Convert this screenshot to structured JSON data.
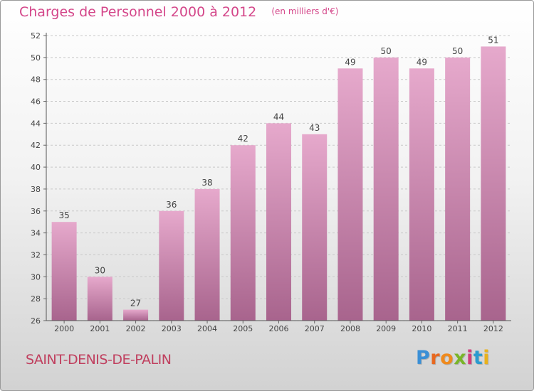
{
  "header": {
    "title": "Charges de Personnel 2000 à 2012",
    "subtitle": "(en milliers d'€)"
  },
  "footer": {
    "commune": "SAINT-DENIS-DE-PALIN",
    "brand": "Proxiti",
    "brand_colors": [
      "#3a8fd6",
      "#e8681f",
      "#ef8a1d",
      "#79b528",
      "#d23b7a",
      "#2a9bd0",
      "#e9b21c"
    ]
  },
  "colors": {
    "bar_top": "#e6a9cc",
    "bar_bottom": "#a8648d",
    "title": "#d4478a",
    "commune": "#c0405f",
    "grid": "#c8c8c8"
  },
  "chart_data": {
    "type": "bar",
    "title": "Charges de Personnel 2000 à 2012",
    "subtitle": "(en milliers d'€)",
    "xlabel": "",
    "ylabel": "",
    "categories": [
      "2000",
      "2001",
      "2002",
      "2003",
      "2004",
      "2005",
      "2006",
      "2007",
      "2008",
      "2009",
      "2010",
      "2011",
      "2012"
    ],
    "values": [
      35,
      30,
      27,
      36,
      38,
      42,
      44,
      43,
      49,
      50,
      49,
      50,
      51
    ],
    "ylim": [
      26,
      52
    ],
    "yticks": [
      26,
      28,
      30,
      32,
      34,
      36,
      38,
      40,
      42,
      44,
      46,
      48,
      50,
      52
    ],
    "grid": true,
    "legend": "none"
  }
}
